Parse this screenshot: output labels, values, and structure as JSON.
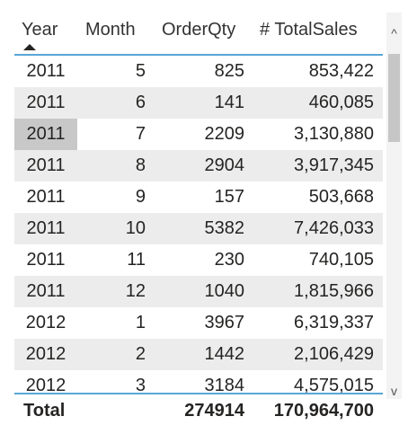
{
  "table": {
    "columns": [
      {
        "key": "year",
        "label": "Year"
      },
      {
        "key": "month",
        "label": "Month"
      },
      {
        "key": "qty",
        "label": "OrderQty"
      },
      {
        "key": "sales",
        "label": "# TotalSales"
      }
    ],
    "sort": {
      "column": "Year",
      "direction": "ascending"
    },
    "rows": [
      {
        "year": "2011",
        "month": "5",
        "qty": "825",
        "sales": "853,422"
      },
      {
        "year": "2011",
        "month": "6",
        "qty": "141",
        "sales": "460,085"
      },
      {
        "year": "2011",
        "month": "7",
        "qty": "2209",
        "sales": "3,130,880"
      },
      {
        "year": "2011",
        "month": "8",
        "qty": "2904",
        "sales": "3,917,345"
      },
      {
        "year": "2011",
        "month": "9",
        "qty": "157",
        "sales": "503,668"
      },
      {
        "year": "2011",
        "month": "10",
        "qty": "5382",
        "sales": "7,426,033"
      },
      {
        "year": "2011",
        "month": "11",
        "qty": "230",
        "sales": "740,105"
      },
      {
        "year": "2011",
        "month": "12",
        "qty": "1040",
        "sales": "1,815,966"
      },
      {
        "year": "2012",
        "month": "1",
        "qty": "3967",
        "sales": "6,319,337"
      },
      {
        "year": "2012",
        "month": "2",
        "qty": "1442",
        "sales": "2,106,429"
      },
      {
        "year": "2012",
        "month": "3",
        "qty": "3184",
        "sales": "4,575,015"
      }
    ],
    "selected_row_index": 2,
    "total": {
      "label": "Total",
      "qty": "274914",
      "sales": "170,964,700"
    }
  },
  "scrollbar": {
    "up_icon": "chevron-up-icon",
    "down_icon": "chevron-down-icon",
    "up_glyph": "^",
    "down_glyph": "v"
  },
  "colors": {
    "accent": "#58a6d6",
    "alt_row": "#ececec",
    "selected_cell": "#c8c8c8",
    "text": "#252423"
  }
}
